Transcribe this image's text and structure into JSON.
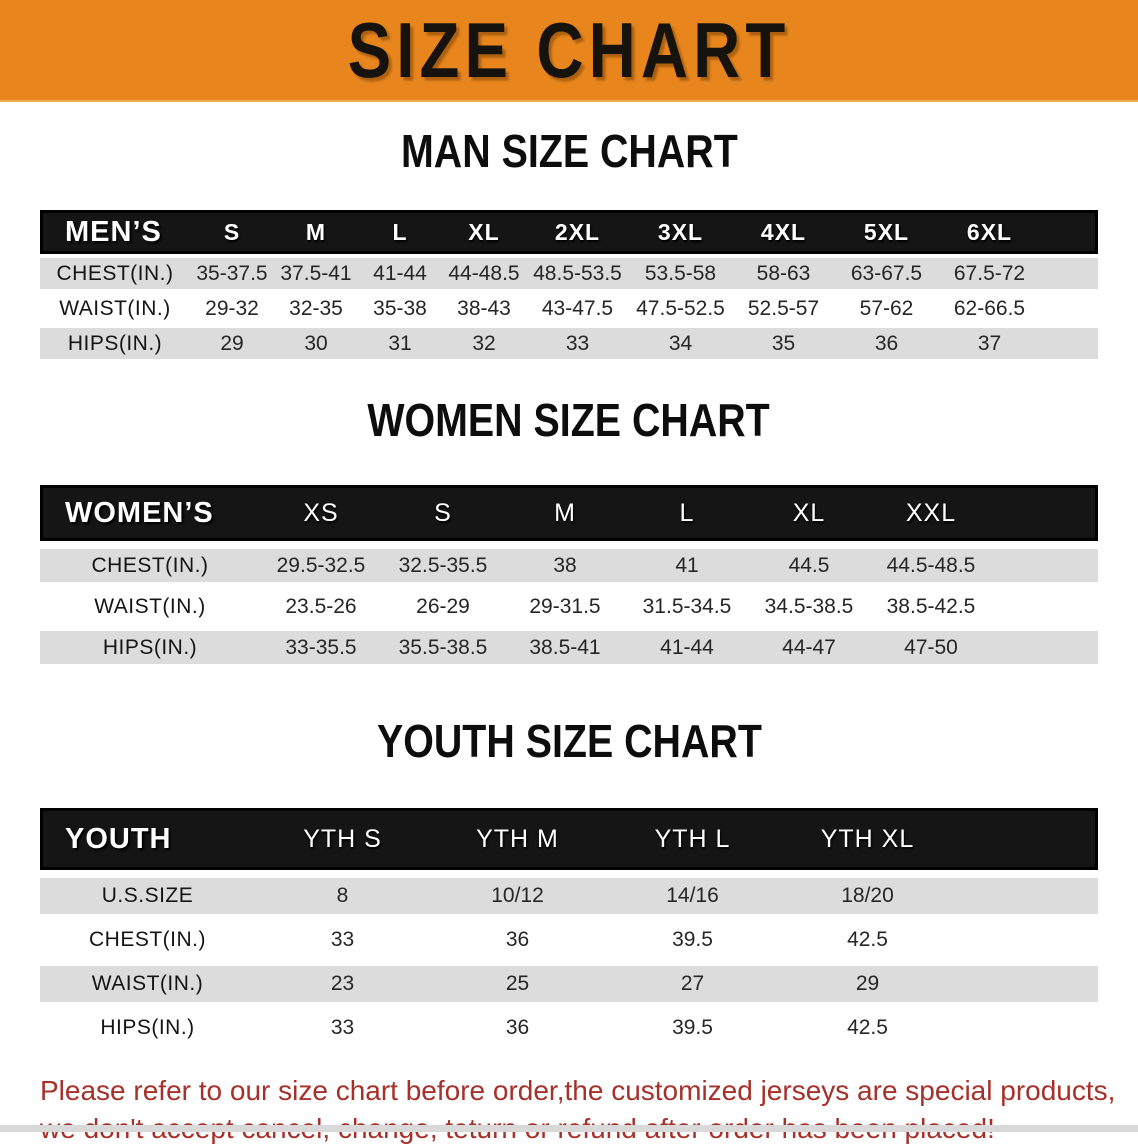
{
  "banner": {
    "title": "SIZE CHART"
  },
  "chart_data": [
    {
      "type": "table",
      "title": "MAN SIZE CHART",
      "corner_label": "MEN’S",
      "columns": [
        "S",
        "M",
        "L",
        "XL",
        "2XL",
        "3XL",
        "4XL",
        "5XL",
        "6XL"
      ],
      "rows": [
        {
          "label": "CHEST(IN.)",
          "values": [
            "35-37.5",
            "37.5-41",
            "41-44",
            "44-48.5",
            "48.5-53.5",
            "53.5-58",
            "58-63",
            "63-67.5",
            "67.5-72"
          ]
        },
        {
          "label": "WAIST(IN.)",
          "values": [
            "29-32",
            "32-35",
            "35-38",
            "38-43",
            "43-47.5",
            "47.5-52.5",
            "52.5-57",
            "57-62",
            "62-66.5"
          ]
        },
        {
          "label": "HIPS(IN.)",
          "values": [
            "29",
            "30",
            "31",
            "32",
            "33",
            "34",
            "35",
            "36",
            "37"
          ]
        }
      ]
    },
    {
      "type": "table",
      "title": "WOMEN SIZE CHART",
      "corner_label": "WOMEN’S",
      "columns": [
        "XS",
        "S",
        "M",
        "L",
        "XL",
        "XXL"
      ],
      "rows": [
        {
          "label": "CHEST(IN.)",
          "values": [
            "29.5-32.5",
            "32.5-35.5",
            "38",
            "41",
            "44.5",
            "44.5-48.5"
          ]
        },
        {
          "label": "WAIST(IN.)",
          "values": [
            "23.5-26",
            "26-29",
            "29-31.5",
            "31.5-34.5",
            "34.5-38.5",
            "38.5-42.5"
          ]
        },
        {
          "label": "HIPS(IN.)",
          "values": [
            "33-35.5",
            "35.5-38.5",
            "38.5-41",
            "41-44",
            "44-47",
            "47-50"
          ]
        }
      ]
    },
    {
      "type": "table",
      "title": "YOUTH SIZE CHART",
      "corner_label": "YOUTH",
      "columns": [
        "YTH S",
        "YTH M",
        "YTH L",
        "YTH XL"
      ],
      "rows": [
        {
          "label": "U.S.SIZE",
          "values": [
            "8",
            "10/12",
            "14/16",
            "18/20"
          ]
        },
        {
          "label": "CHEST(IN.)",
          "values": [
            "33",
            "36",
            "39.5",
            "42.5"
          ]
        },
        {
          "label": "WAIST(IN.)",
          "values": [
            "23",
            "25",
            "27",
            "29"
          ]
        },
        {
          "label": "HIPS(IN.)",
          "values": [
            "33",
            "36",
            "39.5",
            "42.5"
          ]
        }
      ]
    }
  ],
  "footer": {
    "line1": "Please refer to our size chart before order,the customized jerseys are special products,",
    "line2": "we don't accept cancel, change, teturn or refund after order has been placed!"
  },
  "colors": {
    "banner_bg": "#E8861D",
    "table_header_bg": "#151515",
    "row_shade": "#DCDCDC",
    "row_plain": "#FFFFFF",
    "heading_text": "#0D0D0D",
    "footer_text": "#A6302A"
  }
}
